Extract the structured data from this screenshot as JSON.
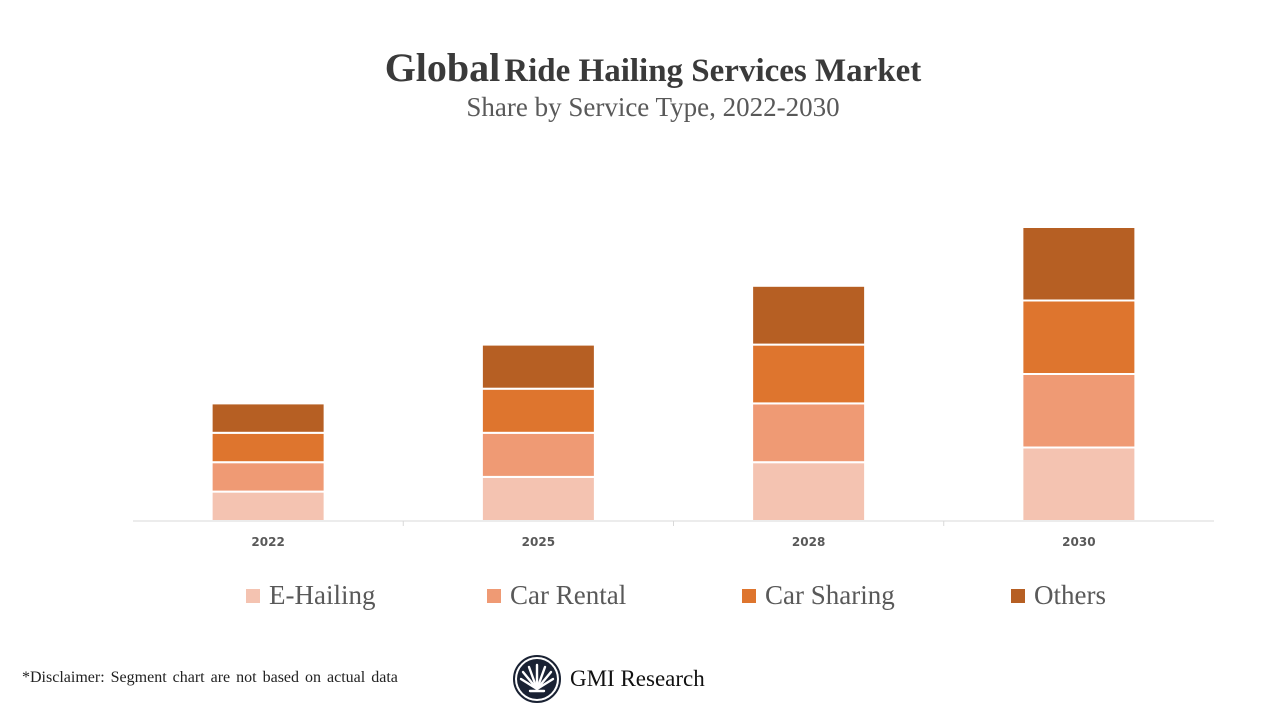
{
  "title_main": "Global",
  "title_rest": "Ride Hailing Services Market",
  "subtitle": "Share by Service Type, 2022-2030",
  "chart_data": {
    "type": "bar",
    "stacked": true,
    "title": "Global Ride Hailing Services Market",
    "subtitle": "Share by Service Type, 2022-2030",
    "categories": [
      "2022",
      "2025",
      "2028",
      "2030"
    ],
    "series": [
      {
        "name": "E-Hailing",
        "color": "#F4C3B1",
        "values": [
          1,
          1.5,
          2,
          2.5
        ]
      },
      {
        "name": "Car Rental",
        "color": "#EF9A74",
        "values": [
          1,
          1.5,
          2,
          2.5
        ]
      },
      {
        "name": "Car Sharing",
        "color": "#DE752E",
        "values": [
          1,
          1.5,
          2,
          2.5
        ]
      },
      {
        "name": "Others",
        "color": "#B65F23",
        "values": [
          1,
          1.5,
          2,
          2.5
        ]
      }
    ],
    "ylim": [
      0,
      10
    ],
    "y_axis_shown": false,
    "grid": false,
    "legend": "bottom"
  },
  "disclaimer": "*Disclaimer:  Segment chart are not based on actual data",
  "logo_text": "GMI Research"
}
